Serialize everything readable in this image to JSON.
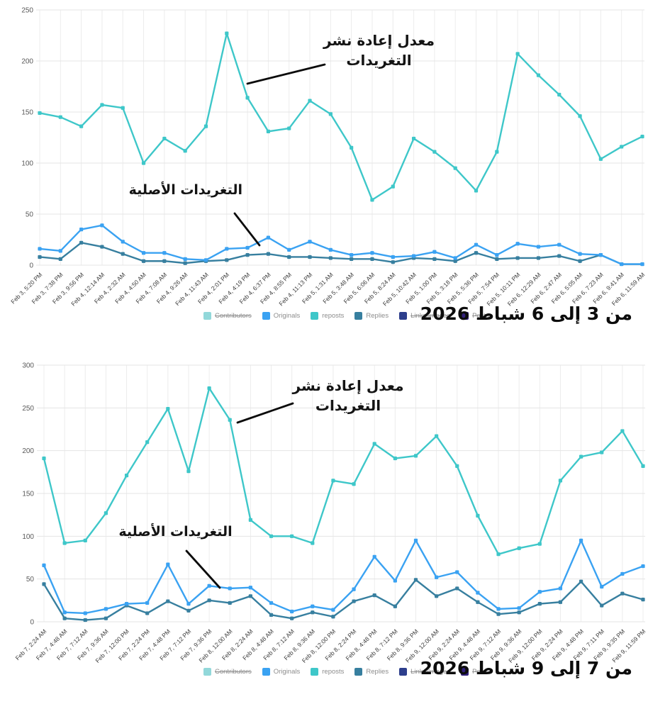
{
  "legend": {
    "items": [
      {
        "label": "Contributors",
        "color": "#92d8da",
        "struck": true
      },
      {
        "label": "Originals",
        "color": "#3aa2f2",
        "struck": false
      },
      {
        "label": "reposts",
        "color": "#3ec7c9",
        "struck": false
      },
      {
        "label": "Replies",
        "color": "#377f9f",
        "struck": false
      },
      {
        "label": "Links/Images",
        "color": "#2d3e8c",
        "struck": true
      },
      {
        "label": "Posts",
        "color": "#32207c",
        "struck": true
      }
    ]
  },
  "annotations": {
    "reposts": {
      "line1": "معدل إعادة نشر",
      "line2": "التغريدات"
    },
    "originals": {
      "text": "التغريدات الأصلية"
    }
  },
  "chart_data": [
    {
      "type": "line",
      "title": "من 3 إلى 6 شباط 2026",
      "ylim": [
        0,
        250
      ],
      "yticks": [
        0,
        50,
        100,
        150,
        200,
        250
      ],
      "grid": true,
      "legend_position": "bottom",
      "categories": [
        "Feb 3, 5:20 PM",
        "Feb 3, 7:38 PM",
        "Feb 3, 9:56 PM",
        "Feb 4, 12:14 AM",
        "Feb 4, 2:32 AM",
        "Feb 4, 4:50 AM",
        "Feb 4, 7:08 AM",
        "Feb 4, 9:26 AM",
        "Feb 4, 11:43 AM",
        "Feb 4, 2:01 PM",
        "Feb 4, 4:19 PM",
        "Feb 4, 6:37 PM",
        "Feb 4, 8:55 PM",
        "Feb 4, 11:13 PM",
        "Feb 5, 1:31 AM",
        "Feb 5, 3:48 AM",
        "Feb 5, 6:06 AM",
        "Feb 5, 8:24 AM",
        "Feb 5, 10:42 AM",
        "Feb 5, 1:00 PM",
        "Feb 5, 3:18 PM",
        "Feb 5, 5:36 PM",
        "Feb 5, 7:54 PM",
        "Feb 5, 10:11 PM",
        "Feb 6, 12:29 AM",
        "Feb 6, 2:47 AM",
        "Feb 6, 5:05 AM",
        "Feb 6, 7:23 AM",
        "Feb 6, 9:41 AM",
        "Feb 6, 11:59 AM"
      ],
      "series": [
        {
          "name": "reposts",
          "color": "#3ec7c9",
          "values": [
            149,
            145,
            136,
            157,
            154,
            100,
            124,
            112,
            136,
            227,
            164,
            131,
            134,
            161,
            148,
            115,
            64,
            77,
            124,
            111,
            95,
            73,
            111,
            207,
            186,
            167,
            146,
            104,
            116,
            126
          ]
        },
        {
          "name": "Originals",
          "color": "#3aa2f2",
          "values": [
            16,
            14,
            35,
            39,
            23,
            12,
            12,
            6,
            5,
            16,
            17,
            27,
            15,
            23,
            15,
            10,
            12,
            8,
            9,
            13,
            7,
            20,
            10,
            21,
            18,
            20,
            11,
            10,
            1,
            1
          ]
        },
        {
          "name": "Replies",
          "color": "#377f9f",
          "values": [
            8,
            6,
            22,
            18,
            11,
            4,
            4,
            2,
            4,
            5,
            10,
            11,
            8,
            8,
            7,
            6,
            6,
            3,
            7,
            6,
            4,
            12,
            6,
            7,
            7,
            9,
            4,
            10,
            1,
            1
          ]
        }
      ]
    },
    {
      "type": "line",
      "title": "من 7 إلى 9 شباط 2026",
      "ylim": [
        0,
        300
      ],
      "yticks": [
        0,
        50,
        100,
        150,
        200,
        250,
        300
      ],
      "grid": true,
      "legend_position": "bottom",
      "categories": [
        "Feb 7, 2:24 AM",
        "Feb 7, 4:48 AM",
        "Feb 7, 7:12 AM",
        "Feb 7, 9:36 AM",
        "Feb 7, 12:00 PM",
        "Feb 7, 2:24 PM",
        "Feb 7, 4:48 PM",
        "Feb 7, 7:12 PM",
        "Feb 7, 9:36 PM",
        "Feb 8, 12:00 AM",
        "Feb 8, 2:24 AM",
        "Feb 8, 4:48 AM",
        "Feb 8, 7:12 AM",
        "Feb 8, 9:36 AM",
        "Feb 8, 12:00 PM",
        "Feb 8, 2:24 PM",
        "Feb 8, 4:48 PM",
        "Feb 8, 7:12 PM",
        "Feb 8, 9:36 PM",
        "Feb 9, 12:00 AM",
        "Feb 9, 2:24 AM",
        "Feb 9, 4:48 AM",
        "Feb 9, 7:12 AM",
        "Feb 9, 9:36 AM",
        "Feb 9, 12:00 PM",
        "Feb 9, 2:24 PM",
        "Feb 9, 4:48 PM",
        "Feb 9, 7:11 PM",
        "Feb 9, 9:35 PM",
        "Feb 9, 11:59 PM"
      ],
      "series": [
        {
          "name": "reposts",
          "color": "#3ec7c9",
          "values": [
            191,
            92,
            95,
            127,
            171,
            210,
            249,
            176,
            273,
            236,
            119,
            100,
            100,
            92,
            165,
            161,
            208,
            191,
            194,
            217,
            182,
            124,
            79,
            86,
            91,
            165,
            193,
            198,
            223,
            182
          ]
        },
        {
          "name": "Originals",
          "color": "#3aa2f2",
          "values": [
            66,
            11,
            10,
            15,
            21,
            22,
            67,
            21,
            42,
            39,
            40,
            22,
            12,
            18,
            14,
            38,
            76,
            48,
            95,
            52,
            58,
            34,
            15,
            16,
            35,
            39,
            95,
            41,
            56,
            65
          ]
        },
        {
          "name": "Replies",
          "color": "#377f9f",
          "values": [
            44,
            4,
            2,
            4,
            19,
            10,
            24,
            13,
            25,
            22,
            30,
            8,
            4,
            11,
            6,
            24,
            31,
            18,
            49,
            30,
            39,
            23,
            9,
            11,
            21,
            23,
            47,
            19,
            33,
            26
          ]
        }
      ]
    }
  ]
}
